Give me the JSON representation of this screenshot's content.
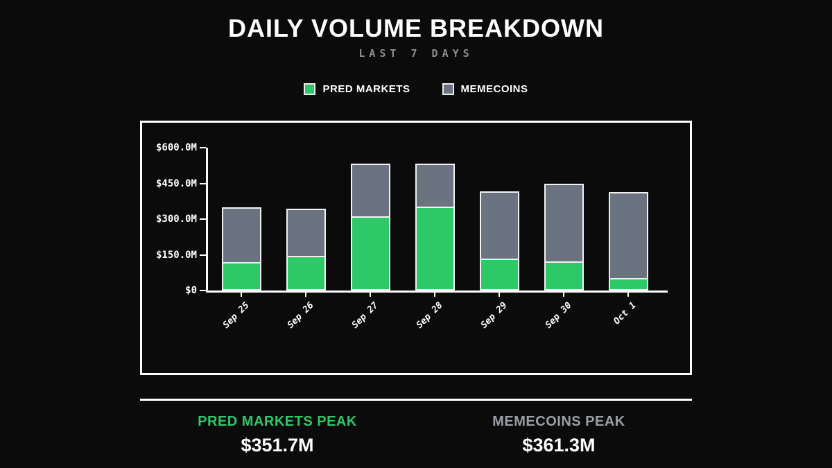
{
  "page": {
    "background": "#0b0b0b"
  },
  "header": {
    "title": "DAILY VOLUME BREAKDOWN",
    "subtitle": "LAST 7 DAYS"
  },
  "legend": [
    {
      "label": "PRED MARKETS",
      "color": "#2dc868"
    },
    {
      "label": "MEMECOINS",
      "color": "#6c7380"
    }
  ],
  "chart_data": {
    "type": "bar",
    "stacked": true,
    "title": "DAILY VOLUME BREAKDOWN",
    "subtitle": "LAST 7 DAYS",
    "categories": [
      "Sep 25",
      "Sep 26",
      "Sep 27",
      "Sep 28",
      "Sep 29",
      "Sep 30",
      "Oct 1"
    ],
    "series": [
      {
        "name": "PRED MARKETS",
        "color": "#2dc868",
        "values": [
          120,
          146,
          312,
          351.7,
          133,
          122,
          52
        ]
      },
      {
        "name": "MEMECOINS",
        "color": "#6c7380",
        "values": [
          231,
          198,
          221,
          180,
          283,
          326,
          361.3
        ]
      }
    ],
    "xlabel": "",
    "ylabel": "",
    "ylim": [
      0,
      600
    ],
    "ytick_values": [
      600,
      450,
      300,
      150,
      0
    ],
    "ytick_labels": [
      "$600.0M",
      "$450.0M",
      "$300.0M",
      "$150.0M",
      "$0"
    ],
    "grid": false,
    "legend_position": "top"
  },
  "stats": {
    "pred": {
      "label": "PRED MARKETS PEAK",
      "value": "$351.7M",
      "color": "#2dc868"
    },
    "meme": {
      "label": "MEMECOINS PEAK",
      "value": "$361.3M",
      "color": "#9aa0a8"
    }
  }
}
